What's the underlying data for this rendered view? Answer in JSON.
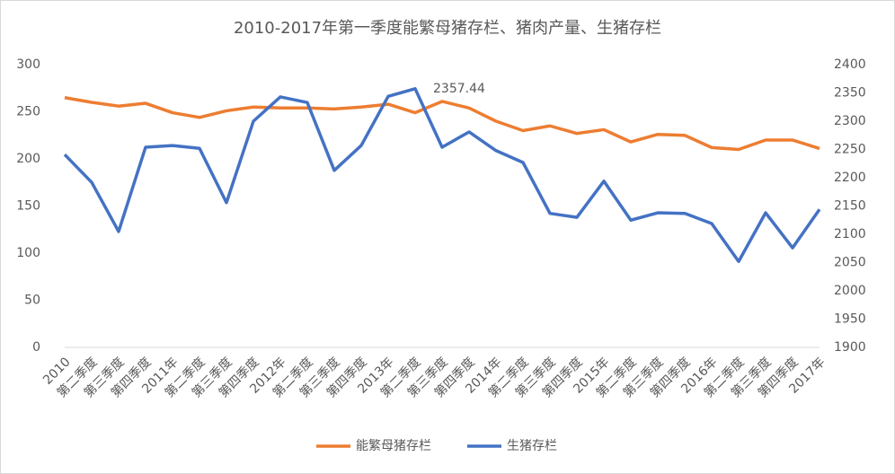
{
  "chart_data": {
    "type": "line",
    "title": "2010-2017年第一季度能繁母猪存栏、猪肉产量、生猪存栏",
    "categories": [
      "2010",
      "第二季度",
      "第三季度",
      "第四季度",
      "2011年",
      "第二季度",
      "第三季度",
      "第四季度",
      "2012年",
      "第二季度",
      "第三季度",
      "第四季度",
      "2013年",
      "第二季度",
      "第三季度",
      "第四季度",
      "2014年",
      "第二季度",
      "第三季度",
      "第四季度",
      "2015年",
      "第二季度",
      "第三季度",
      "第四季度",
      "2016年",
      "第二季度",
      "第三季度",
      "第四季度",
      "2017年"
    ],
    "series": [
      {
        "name": "能繁母猪存栏",
        "color": "#ed7d31",
        "values": [
          265,
          260,
          256,
          259,
          249,
          244,
          251,
          255,
          254,
          254,
          253,
          255,
          258,
          249,
          261,
          254,
          240,
          230,
          235,
          227,
          231,
          218,
          226,
          225,
          212,
          210,
          220,
          220,
          211
        ]
      },
      {
        "name": "生猪存栏",
        "color": "#4472c4",
        "axis": "y2",
        "values": [
          2241,
          2192,
          2105,
          2254,
          2257,
          2252,
          2156,
          2300,
          2343,
          2333,
          2213,
          2257,
          2344,
          2357.44,
          2254,
          2281,
          2248,
          2227,
          2137,
          2130,
          2194,
          2125,
          2138,
          2137,
          2119,
          2052,
          2138,
          2076,
          2144
        ],
        "value_labels": [
          null,
          null,
          null,
          null,
          null,
          null,
          null,
          null,
          null,
          null,
          null,
          null,
          null,
          "2357.44",
          null,
          null,
          null,
          null,
          null,
          null,
          null,
          null,
          null,
          null,
          null,
          null,
          null,
          null,
          null
        ]
      }
    ],
    "ylim": [
      0,
      300
    ],
    "yticks": [
      0,
      50,
      100,
      150,
      200,
      250,
      300
    ],
    "y2lim": [
      1900,
      2400
    ],
    "y2ticks": [
      1900,
      1950,
      2000,
      2050,
      2100,
      2150,
      2200,
      2250,
      2300,
      2350,
      2400
    ],
    "grid": false,
    "legend": "bottom"
  }
}
